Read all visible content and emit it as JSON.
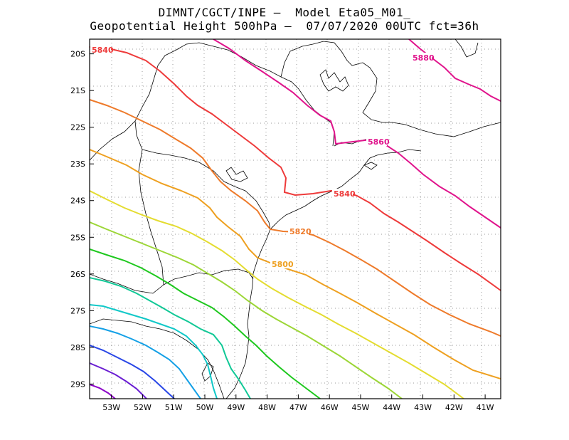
{
  "header": {
    "line1": "DIMNT/CGCT/INPE –  Model Eta05_M01_",
    "line2": "Geopotential Height 500hPa –  07/07/2020 00UTC fct=36h"
  },
  "map": {
    "lon_range": [
      -53.7,
      -40.5
    ],
    "lat_range": [
      -29.4,
      -19.6
    ],
    "x_ticks": [
      "53W",
      "52W",
      "51W",
      "50W",
      "49W",
      "48W",
      "47W",
      "46W",
      "45W",
      "44W",
      "43W",
      "42W",
      "41W"
    ],
    "x_tick_values": [
      -53,
      -52,
      -51,
      -50,
      -49,
      -48,
      -47,
      -46,
      -45,
      -44,
      -43,
      -42,
      -41
    ],
    "y_ticks": [
      "20S",
      "21S",
      "22S",
      "23S",
      "24S",
      "25S",
      "26S",
      "27S",
      "28S",
      "29S"
    ],
    "y_tick_values": [
      -20,
      -21,
      -22,
      -23,
      -24,
      -25,
      -26,
      -27,
      -28,
      -29
    ],
    "contour_labels": [
      {
        "text": "5840",
        "value": 5840,
        "color": "#ee3a3a"
      },
      {
        "text": "5880",
        "value": 5880,
        "color": "#e0148c"
      },
      {
        "text": "5860",
        "value": 5860,
        "color": "#e0148c"
      },
      {
        "text": "5840",
        "value": 5840,
        "color": "#ee3a3a"
      },
      {
        "text": "5820",
        "value": 5820,
        "color": "#ee7a2a"
      },
      {
        "text": "5800",
        "value": 5800,
        "color": "#eea020"
      }
    ]
  }
}
